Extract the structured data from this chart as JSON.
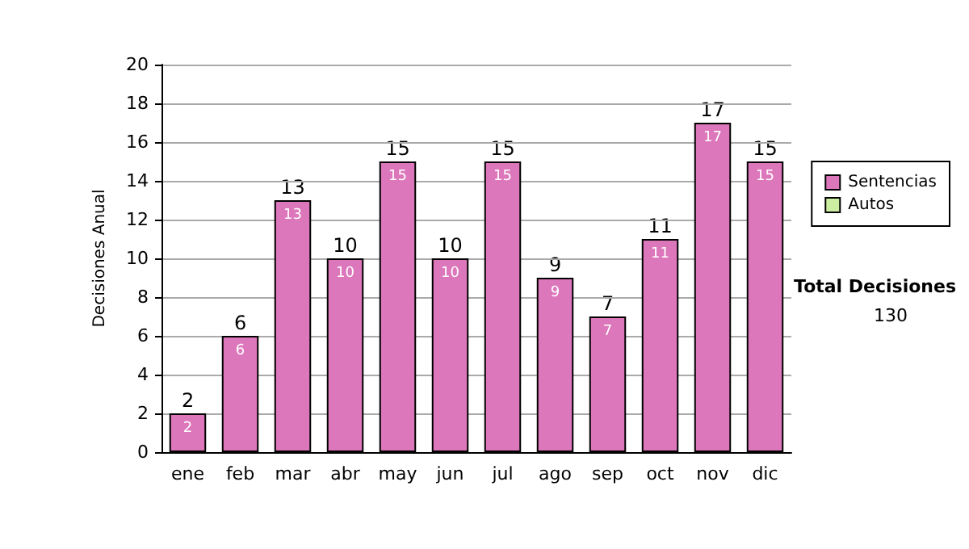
{
  "chart_data": {
    "type": "bar",
    "ylabel": "Decisiones Anual",
    "categories": [
      "ene",
      "feb",
      "mar",
      "abr",
      "may",
      "jun",
      "jul",
      "ago",
      "sep",
      "oct",
      "nov",
      "dic"
    ],
    "series": [
      {
        "name": "Sentencias",
        "color": "#dd77bb",
        "values": [
          2,
          6,
          13,
          10,
          15,
          10,
          15,
          9,
          7,
          11,
          17,
          15
        ]
      },
      {
        "name": "Autos",
        "color": "#cceea0",
        "values": [
          null,
          null,
          null,
          null,
          null,
          null,
          null,
          null,
          null,
          null,
          null,
          null
        ]
      }
    ],
    "stacked": true,
    "data_labels": true,
    "totals": [
      "2",
      "6",
      "13",
      "10",
      "15",
      "10",
      "15",
      "9",
      "7",
      "11",
      "17",
      "15"
    ],
    "ylim": [
      0,
      20
    ],
    "yticks": [
      0,
      2,
      4,
      6,
      8,
      10,
      12,
      14,
      16,
      18,
      20
    ],
    "grid": "y",
    "legend": "right",
    "annotations": [
      "Total Decisiones",
      "130"
    ]
  }
}
